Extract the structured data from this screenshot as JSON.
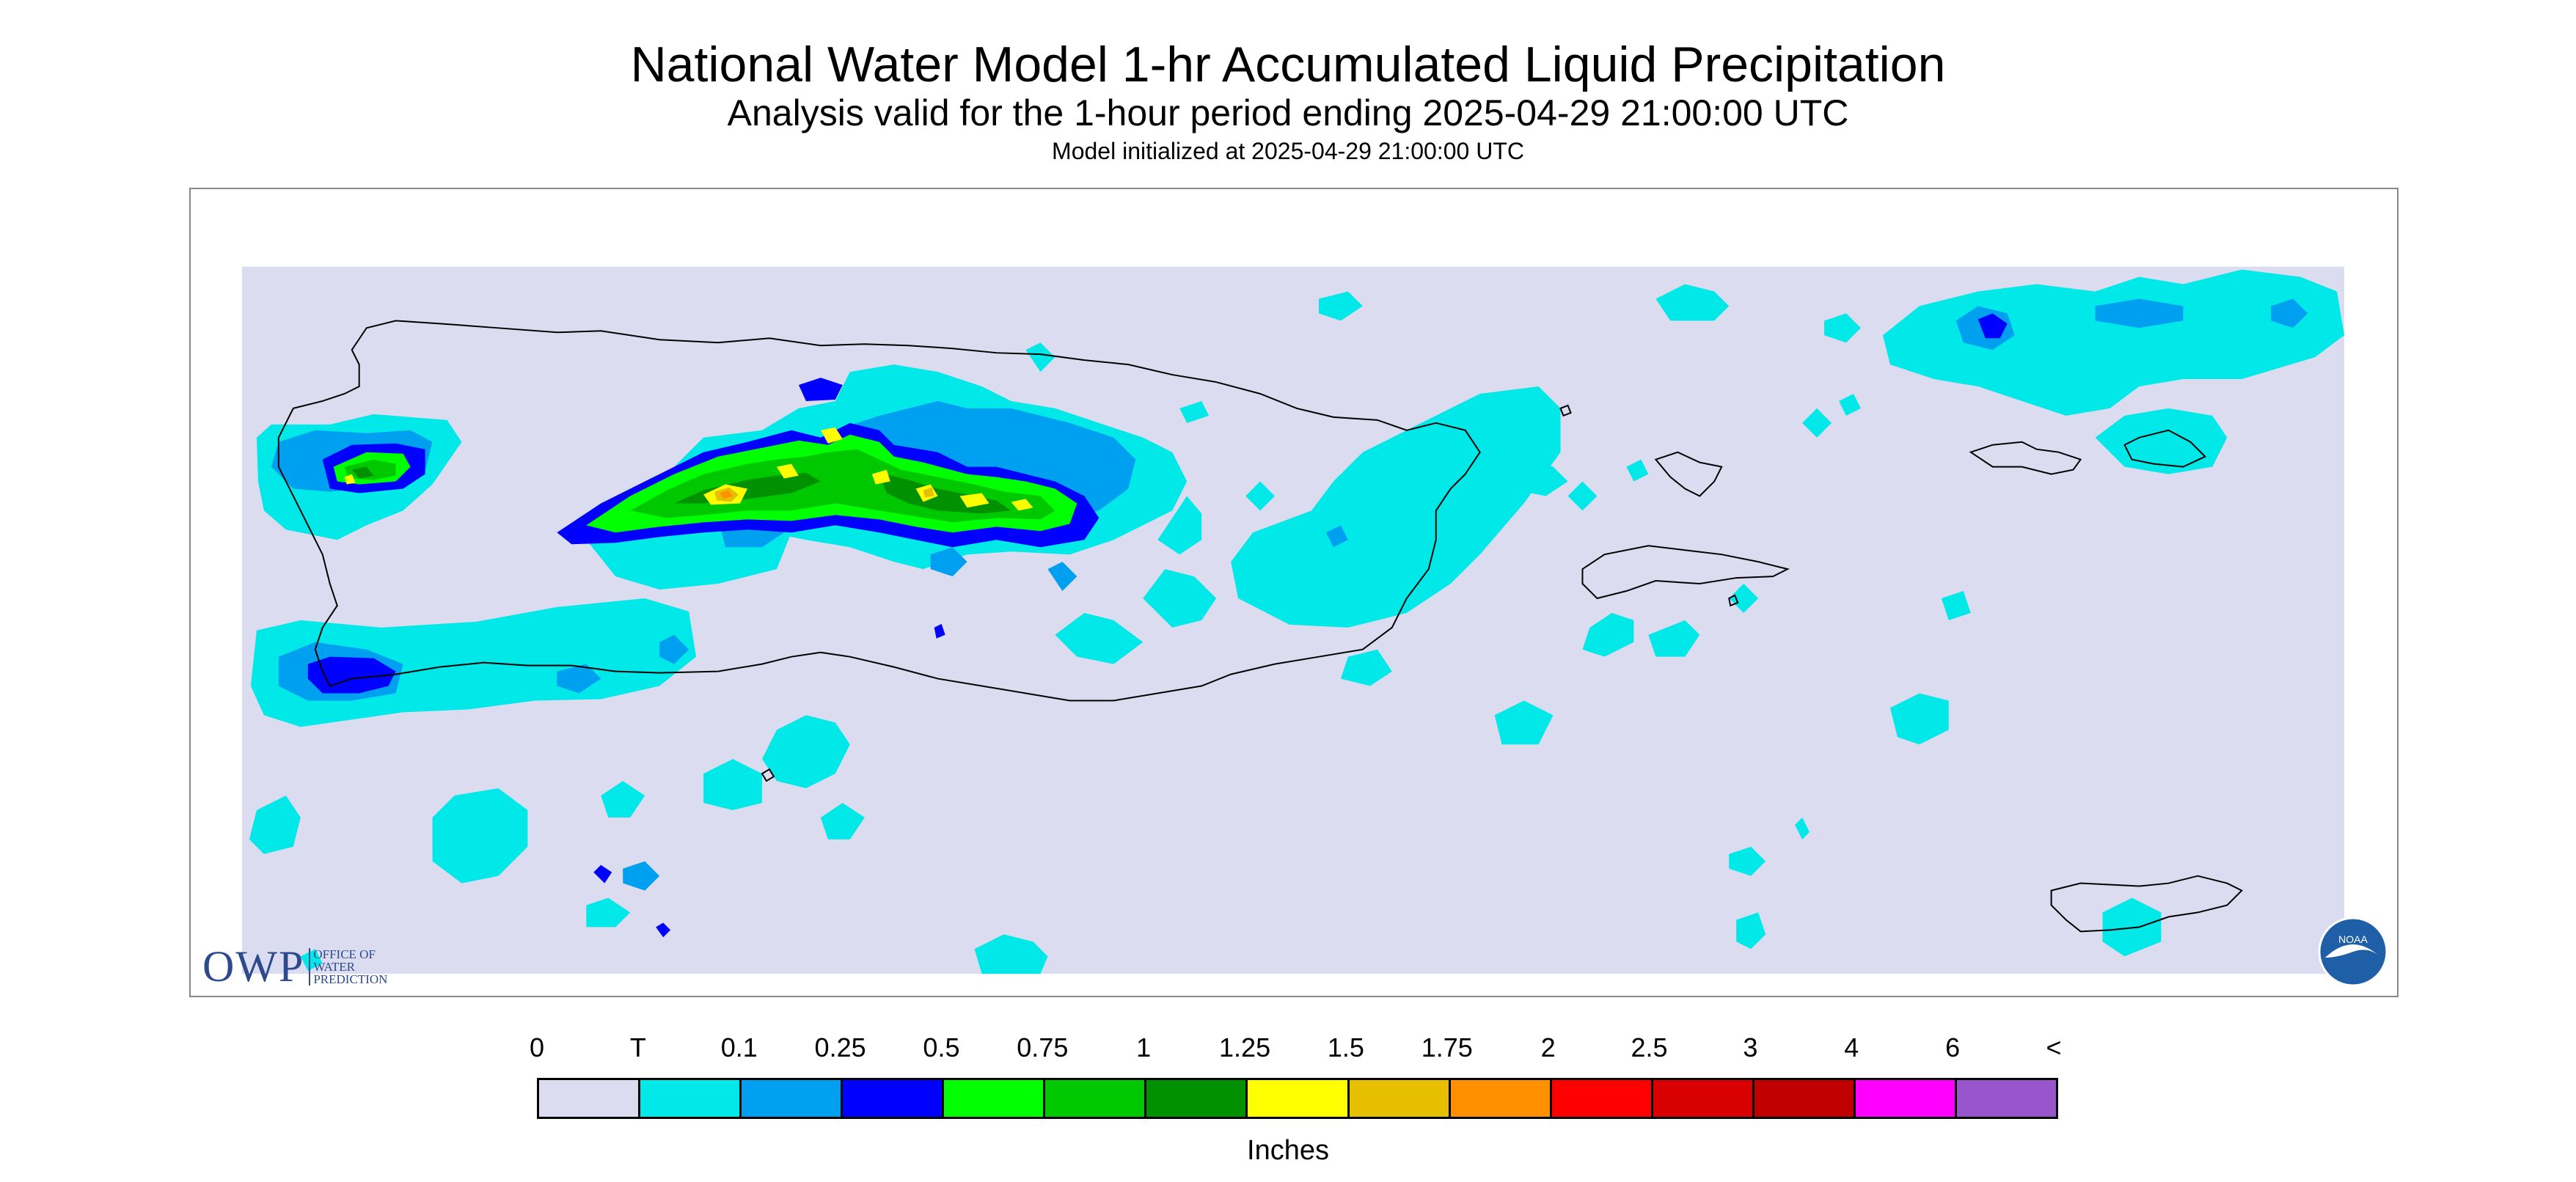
{
  "header": {
    "title": "National Water Model 1-hr Accumulated Liquid Precipitation",
    "subtitle": "Analysis valid for the 1-hour period ending 2025-04-29 21:00:00 UTC",
    "init": "Model initialized at 2025-04-29 21:00:00 UTC"
  },
  "logos": {
    "owp_mark": "OWP",
    "owp_line1": "OFFICE OF",
    "owp_line2": "WATER",
    "owp_line3": "PREDICTION",
    "noaa": "NOAA"
  },
  "legend": {
    "labels": [
      "0",
      "T",
      "0.1",
      "0.25",
      "0.5",
      "0.75",
      "1",
      "1.25",
      "1.5",
      "1.75",
      "2",
      "2.5",
      "3",
      "4",
      "6",
      "<"
    ],
    "colors": [
      "#dcdcf0",
      "#00e8e8",
      "#00a0f0",
      "#0000ff",
      "#00ff00",
      "#00c800",
      "#009000",
      "#ffff00",
      "#e6c000",
      "#ff9000",
      "#ff0000",
      "#d80000",
      "#c00000",
      "#ff00ff",
      "#9955cc"
    ],
    "units": "Inches"
  },
  "colors": {
    "background_no_data": "#dcdcf0",
    "trace": "#00e8e8",
    "light": "#00a0f0",
    "moderate": "#0000ff",
    "green_light": "#00ff00",
    "green_mid": "#00c800",
    "green_dark": "#009000",
    "yellow": "#ffff00",
    "gold": "#e6c000",
    "orange": "#ff9000",
    "coast": "#000000"
  }
}
